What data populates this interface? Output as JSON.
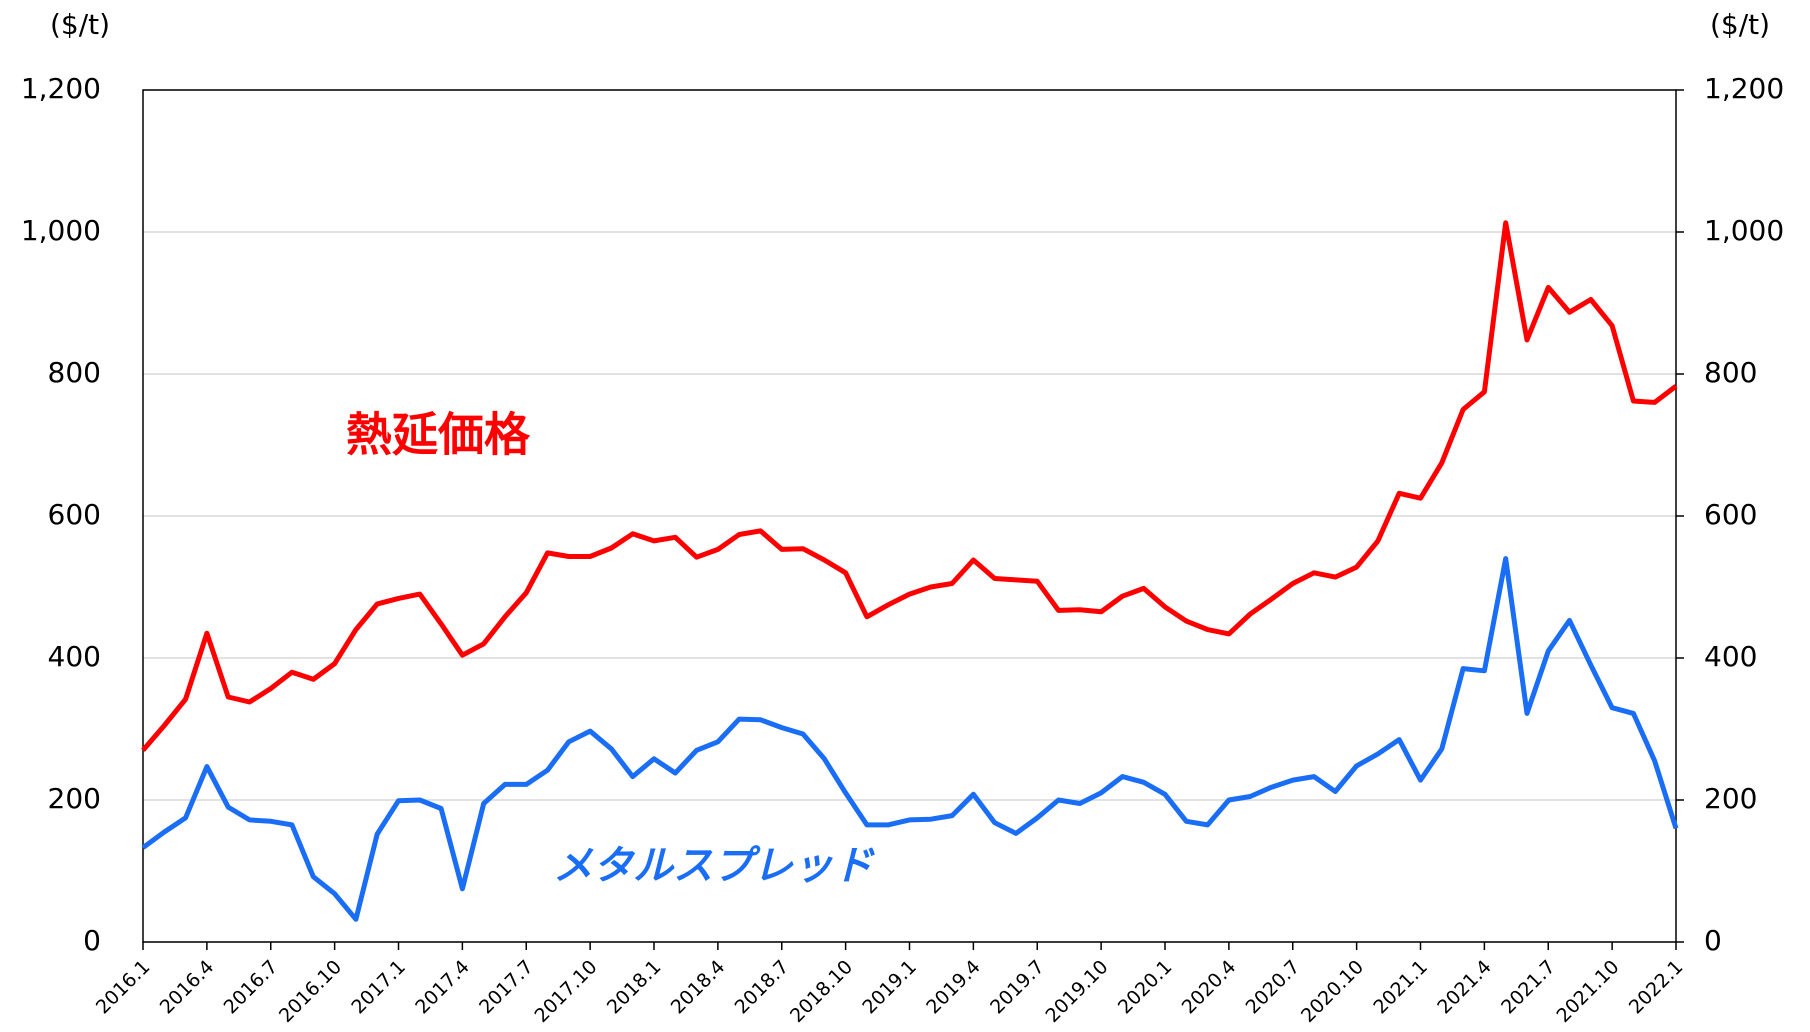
{
  "chart_data": {
    "type": "line",
    "annotations": [
      "熱延価格",
      "メタルスプレッド"
    ],
    "y_unit": "($/t)",
    "y2_unit": "($/t)",
    "categories": [
      "2016.1",
      null,
      null,
      "2016.4",
      null,
      null,
      "2016.7",
      null,
      null,
      "2016.10",
      null,
      null,
      "2017.1",
      null,
      null,
      "2017.4",
      null,
      null,
      "2017.7",
      null,
      null,
      "2017.10",
      null,
      null,
      "2018.1",
      null,
      null,
      "2018.4",
      null,
      null,
      "2018.7",
      null,
      null,
      "2018.10",
      null,
      null,
      "2019.1",
      null,
      null,
      "2019.4",
      null,
      null,
      "2019.7",
      null,
      null,
      "2019.10",
      null,
      null,
      "2020.1",
      null,
      null,
      "2020.4",
      null,
      null,
      "2020.7",
      null,
      null,
      "2020.10",
      null,
      null,
      "2021.1",
      null,
      null,
      "2021.4",
      null,
      null,
      "2021.7",
      null,
      null,
      "2021.10",
      null,
      null,
      "2022.1"
    ],
    "series": [
      {
        "name": "熱延価格",
        "color": "#ff0000",
        "axis": "y",
        "values": [
          270,
          305,
          342,
          435,
          345,
          338,
          357,
          380,
          370,
          392,
          440,
          476,
          484,
          490,
          448,
          404,
          420,
          458,
          492,
          548,
          543,
          543,
          555,
          575,
          565,
          570,
          542,
          553,
          574,
          579,
          553,
          554,
          538,
          520,
          458,
          475,
          490,
          500,
          505,
          538,
          512,
          510,
          508,
          467,
          468,
          465,
          487,
          498,
          472,
          452,
          440,
          434,
          462,
          483,
          505,
          520,
          514,
          528,
          565,
          632,
          625,
          675,
          750,
          775,
          1013,
          848,
          922,
          887,
          905,
          868,
          762,
          760,
          783
        ]
      },
      {
        "name": "メタルスプレッド",
        "color": "#1a6ef5",
        "axis": "y2",
        "values": [
          133,
          155,
          175,
          247,
          190,
          172,
          170,
          165,
          92,
          68,
          32,
          152,
          199,
          200,
          188,
          75,
          195,
          222,
          222,
          242,
          282,
          297,
          272,
          233,
          258,
          238,
          270,
          282,
          314,
          313,
          302,
          293,
          258,
          210,
          165,
          165,
          172,
          173,
          178,
          208,
          168,
          153,
          175,
          200,
          195,
          210,
          233,
          225,
          208,
          170,
          165,
          200,
          205,
          218,
          228,
          233,
          212,
          248,
          265,
          285,
          228,
          272,
          385,
          382,
          540,
          322,
          410,
          453,
          390,
          330,
          322,
          255,
          160
        ]
      }
    ],
    "ylim": [
      0,
      1200
    ],
    "yticks": [
      0,
      200,
      400,
      600,
      800,
      {
        "value": 1000,
        "label": "1,000"
      },
      {
        "value": 1200,
        "label": "1,200"
      }
    ],
    "y2lim": [
      0,
      1200
    ],
    "y2ticks": [
      0,
      200,
      400,
      600,
      800,
      {
        "value": 1000,
        "label": "1,000"
      },
      {
        "value": 1200,
        "label": "1,200"
      }
    ],
    "grid": true
  }
}
